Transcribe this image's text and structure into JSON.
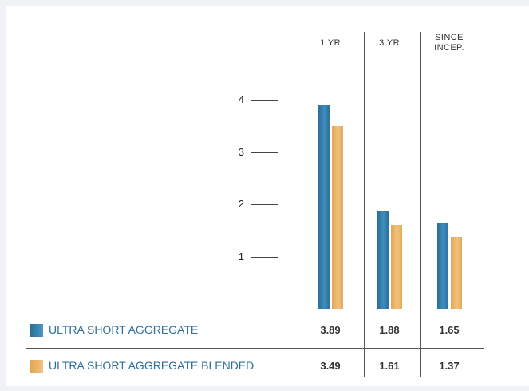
{
  "chart_data": {
    "type": "bar",
    "categories": [
      [
        "1 YR"
      ],
      [
        "3 YR"
      ],
      [
        "SINCE",
        "INCEP."
      ]
    ],
    "series": [
      {
        "name": "ULTRA SHORT AGGREGATE",
        "color": "#3a86b5",
        "values": [
          3.89,
          1.88,
          1.65
        ]
      },
      {
        "name": "ULTRA SHORT AGGREGATE BLENDED",
        "color": "#efb96e",
        "values": [
          3.49,
          1.61,
          1.37
        ]
      }
    ],
    "yticks": [
      1,
      2,
      3,
      4
    ],
    "ylim": [
      0,
      4
    ],
    "grid": false,
    "legend": "bottom-left table"
  }
}
